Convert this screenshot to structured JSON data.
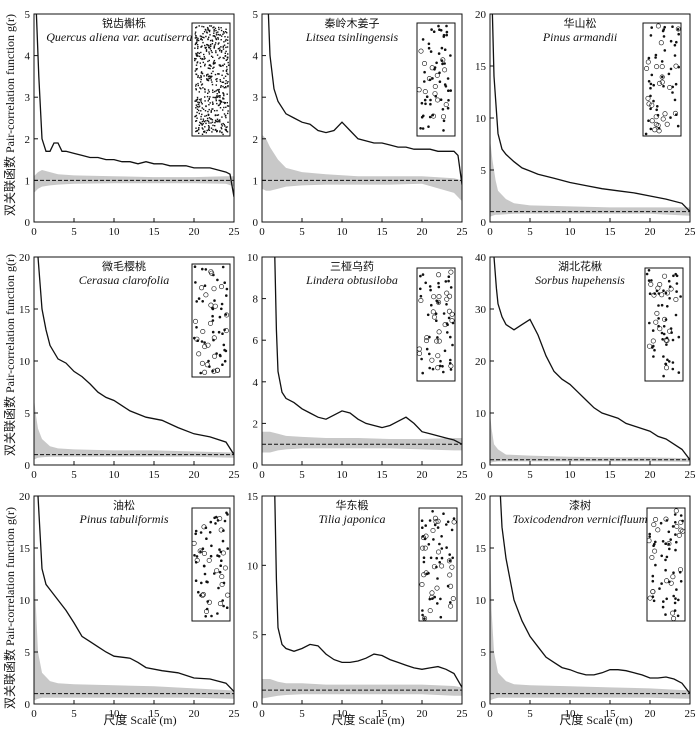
{
  "figure": {
    "ylabel": "双关联函数 Pair-correlation function g(r)",
    "xlabel": "尺度 Scale (m)"
  },
  "colors": {
    "line": "#111111",
    "envelope": "#c8c8c8",
    "map_point": "#111111"
  },
  "chart_data": [
    {
      "type": "line",
      "title_cn": "锐齿槲栎",
      "title_latin": "Quercus aliena var. acutiserrata",
      "xlim": [
        0,
        25
      ],
      "ylim": [
        0,
        5
      ],
      "xticks": [
        0,
        5,
        10,
        15,
        20,
        25
      ],
      "yticks": [
        0,
        1,
        2,
        3,
        4,
        5
      ],
      "x": [
        0.3,
        0.6,
        1.0,
        1.5,
        2.0,
        2.5,
        3.0,
        3.5,
        4.0,
        5.0,
        6.0,
        7.0,
        8.0,
        9.0,
        10.0,
        11.0,
        12.0,
        13.0,
        14.0,
        15.0,
        16.0,
        17.0,
        18.0,
        19.0,
        20.0,
        21.0,
        22.0,
        23.0,
        24.0,
        24.5,
        25.0
      ],
      "g": [
        5.0,
        3.5,
        2.0,
        1.7,
        1.7,
        1.9,
        1.9,
        1.7,
        1.7,
        1.65,
        1.6,
        1.55,
        1.55,
        1.5,
        1.5,
        1.45,
        1.45,
        1.4,
        1.45,
        1.4,
        1.4,
        1.35,
        1.35,
        1.35,
        1.3,
        1.3,
        1.3,
        1.25,
        1.2,
        1.15,
        0.6
      ],
      "env_x": [
        0.0,
        0.5,
        1.0,
        2.0,
        3.0,
        5.0,
        10.0,
        15.0,
        20.0,
        24.0,
        25.0
      ],
      "env_upper": [
        1.1,
        1.2,
        1.25,
        1.2,
        1.15,
        1.12,
        1.1,
        1.08,
        1.08,
        1.1,
        1.1
      ],
      "env_lower": [
        0.7,
        0.8,
        0.85,
        0.88,
        0.9,
        0.92,
        0.93,
        0.93,
        0.93,
        0.92,
        0.85
      ],
      "reference": 1.0
    },
    {
      "type": "line",
      "title_cn": "秦岭木姜子",
      "title_latin": "Litsea tsinlingensis",
      "xlim": [
        0,
        25
      ],
      "ylim": [
        0,
        5
      ],
      "xticks": [
        0,
        5,
        10,
        15,
        20,
        25
      ],
      "yticks": [
        0,
        1,
        2,
        3,
        4,
        5
      ],
      "x": [
        0.8,
        1.0,
        1.5,
        2.0,
        3.0,
        4.0,
        5.0,
        6.0,
        7.0,
        8.0,
        9.0,
        10.0,
        11.0,
        12.0,
        13.0,
        14.0,
        15.0,
        16.0,
        17.0,
        18.0,
        19.0,
        20.0,
        21.0,
        22.0,
        23.0,
        24.0,
        24.5,
        25.0
      ],
      "g": [
        5.0,
        4.0,
        3.2,
        2.9,
        2.6,
        2.5,
        2.4,
        2.35,
        2.2,
        2.15,
        2.2,
        2.4,
        2.2,
        2.0,
        1.95,
        1.9,
        1.9,
        1.85,
        1.8,
        1.8,
        1.75,
        1.75,
        1.75,
        1.7,
        1.7,
        1.7,
        1.6,
        0.9
      ],
      "env_x": [
        0.0,
        0.5,
        1.0,
        2.0,
        3.0,
        5.0,
        8.0,
        12.0,
        16.0,
        20.0,
        24.0,
        25.0
      ],
      "env_upper": [
        2.1,
        2.0,
        1.8,
        1.5,
        1.3,
        1.2,
        1.15,
        1.1,
        1.1,
        1.1,
        1.05,
        1.0
      ],
      "env_lower": [
        0.8,
        0.75,
        0.75,
        0.8,
        0.85,
        0.88,
        0.9,
        0.9,
        0.9,
        0.92,
        0.7,
        0.5
      ],
      "reference": 1.0
    },
    {
      "type": "line",
      "title_cn": "华山松",
      "title_latin": "Pinus armandii",
      "xlim": [
        0,
        25
      ],
      "ylim": [
        0,
        20
      ],
      "xticks": [
        0,
        5,
        10,
        15,
        20,
        25
      ],
      "yticks": [
        0,
        5,
        10,
        15,
        20
      ],
      "x": [
        0.3,
        0.5,
        1.0,
        1.5,
        2.0,
        3.0,
        4.0,
        5.0,
        6.0,
        7.0,
        8.0,
        9.0,
        10.0,
        12.0,
        14.0,
        16.0,
        18.0,
        20.0,
        22.0,
        24.0,
        25.0
      ],
      "g": [
        20.0,
        14.0,
        8.5,
        7.0,
        6.5,
        5.8,
        5.2,
        4.9,
        4.6,
        4.4,
        4.2,
        4.0,
        3.8,
        3.5,
        3.2,
        3.0,
        2.8,
        2.5,
        2.2,
        1.8,
        1.0
      ],
      "env_x": [
        0.0,
        0.3,
        0.7,
        1.0,
        2.0,
        3.0,
        5.0,
        10.0,
        15.0,
        20.0,
        25.0
      ],
      "env_upper": [
        8.0,
        6.0,
        4.0,
        3.0,
        2.2,
        1.8,
        1.6,
        1.5,
        1.4,
        1.4,
        1.4
      ],
      "env_lower": [
        0.5,
        0.6,
        0.7,
        0.7,
        0.75,
        0.8,
        0.8,
        0.8,
        0.8,
        0.8,
        0.6
      ],
      "reference": 1.0
    },
    {
      "type": "line",
      "title_cn": "微毛樱桃",
      "title_latin": "Cerasua clarofolia",
      "xlim": [
        0,
        25
      ],
      "ylim": [
        0,
        20
      ],
      "xticks": [
        0,
        5,
        10,
        15,
        20,
        25
      ],
      "yticks": [
        0,
        5,
        10,
        15,
        20
      ],
      "x": [
        0.5,
        1.0,
        1.5,
        2.0,
        3.0,
        4.0,
        5.0,
        6.0,
        7.0,
        8.0,
        9.0,
        10.0,
        11.0,
        12.0,
        14.0,
        16.0,
        18.0,
        20.0,
        22.0,
        24.0,
        25.0
      ],
      "g": [
        20.0,
        15.0,
        13.0,
        11.5,
        10.2,
        9.8,
        9.0,
        8.5,
        7.8,
        7.0,
        6.5,
        6.2,
        5.7,
        5.2,
        4.6,
        4.3,
        3.6,
        3.0,
        2.7,
        2.2,
        1.0
      ],
      "env_x": [
        0.0,
        0.2,
        0.5,
        1.0,
        2.0,
        3.0,
        5.0,
        10.0,
        15.0,
        20.0,
        25.0
      ],
      "env_upper": [
        6.5,
        5.0,
        3.5,
        2.5,
        1.8,
        1.6,
        1.5,
        1.4,
        1.4,
        1.3,
        1.2
      ],
      "env_lower": [
        0.5,
        0.6,
        0.7,
        0.75,
        0.8,
        0.8,
        0.8,
        0.8,
        0.8,
        0.8,
        0.7
      ],
      "reference": 1.0
    },
    {
      "type": "line",
      "title_cn": "三桠乌药",
      "title_latin": "Lindera obtusiloba",
      "xlim": [
        0,
        25
      ],
      "ylim": [
        0,
        10
      ],
      "xticks": [
        0,
        5,
        10,
        15,
        20,
        25
      ],
      "yticks": [
        0,
        2,
        4,
        6,
        8,
        10
      ],
      "x": [
        1.6,
        1.8,
        2.0,
        2.5,
        3.0,
        4.0,
        5.0,
        6.0,
        7.0,
        8.0,
        9.0,
        10.0,
        11.0,
        12.0,
        13.0,
        14.0,
        15.0,
        16.0,
        17.0,
        18.0,
        19.0,
        20.0,
        21.0,
        22.0,
        23.0,
        24.0,
        25.0
      ],
      "g": [
        10.0,
        6.5,
        4.5,
        3.5,
        3.2,
        3.0,
        2.7,
        2.5,
        2.3,
        2.2,
        2.4,
        2.6,
        2.5,
        2.2,
        2.0,
        1.9,
        1.8,
        1.9,
        2.1,
        2.3,
        2.0,
        1.6,
        1.5,
        1.4,
        1.3,
        1.2,
        1.0
      ],
      "env_x": [
        0.0,
        1.0,
        2.0,
        3.0,
        5.0,
        8.0,
        12.0,
        16.0,
        20.0,
        24.0,
        25.0
      ],
      "env_upper": [
        1.6,
        1.6,
        1.5,
        1.4,
        1.35,
        1.3,
        1.3,
        1.25,
        1.25,
        1.3,
        1.3
      ],
      "env_lower": [
        0.6,
        0.6,
        0.7,
        0.75,
        0.8,
        0.8,
        0.8,
        0.8,
        0.75,
        0.7,
        0.7
      ],
      "reference": 1.0
    },
    {
      "type": "line",
      "title_cn": "湖北花楸",
      "title_latin": "Sorbus hupehensis",
      "xlim": [
        0,
        25
      ],
      "ylim": [
        0,
        40
      ],
      "xticks": [
        0,
        5,
        10,
        15,
        20,
        25
      ],
      "yticks": [
        0,
        10,
        20,
        30,
        40
      ],
      "x": [
        0.5,
        0.8,
        1.0,
        1.5,
        2.0,
        3.0,
        4.0,
        5.0,
        6.0,
        7.0,
        8.0,
        9.0,
        10.0,
        11.0,
        12.0,
        13.0,
        14.0,
        15.0,
        16.0,
        17.0,
        18.0,
        19.0,
        20.0,
        21.0,
        22.0,
        23.0,
        24.0,
        25.0
      ],
      "g": [
        40.0,
        34.0,
        31.0,
        28.5,
        27.0,
        26.0,
        27.0,
        28.0,
        25.0,
        21.0,
        18.0,
        16.5,
        15.5,
        14.0,
        12.5,
        11.0,
        10.0,
        9.5,
        9.0,
        8.0,
        7.5,
        7.0,
        6.5,
        5.5,
        5.0,
        4.0,
        3.0,
        1.0
      ],
      "env_x": [
        0.0,
        0.2,
        0.5,
        1.0,
        2.0,
        5.0,
        10.0,
        15.0,
        20.0,
        25.0
      ],
      "env_upper": [
        10.0,
        7.0,
        4.0,
        3.0,
        2.0,
        1.8,
        1.6,
        1.5,
        1.5,
        1.3
      ],
      "env_lower": [
        0.3,
        0.5,
        0.6,
        0.7,
        0.7,
        0.7,
        0.7,
        0.7,
        0.7,
        0.6
      ],
      "reference": 1.0
    },
    {
      "type": "line",
      "title_cn": "油松",
      "title_latin": "Pinus tabuliformis",
      "xlim": [
        0,
        25
      ],
      "ylim": [
        0,
        20
      ],
      "xticks": [
        0,
        5,
        10,
        15,
        20,
        25
      ],
      "yticks": [
        0,
        5,
        10,
        15,
        20
      ],
      "x": [
        0.5,
        1.0,
        1.5,
        2.0,
        3.0,
        4.0,
        5.0,
        6.0,
        7.0,
        8.0,
        9.0,
        10.0,
        11.0,
        12.0,
        13.0,
        14.0,
        16.0,
        18.0,
        20.0,
        22.0,
        24.0,
        25.0
      ],
      "g": [
        20.0,
        13.0,
        11.5,
        11.0,
        10.0,
        9.0,
        7.8,
        6.5,
        6.0,
        5.5,
        5.0,
        4.6,
        4.5,
        4.4,
        4.0,
        3.5,
        3.2,
        3.0,
        2.5,
        2.4,
        2.0,
        1.2
      ],
      "env_x": [
        0.0,
        0.2,
        0.5,
        1.0,
        2.0,
        3.0,
        5.0,
        10.0,
        15.0,
        20.0,
        25.0
      ],
      "env_upper": [
        20.0,
        10.0,
        5.0,
        3.0,
        2.2,
        2.0,
        1.9,
        1.8,
        1.7,
        1.5,
        1.3
      ],
      "env_lower": [
        0.3,
        0.4,
        0.5,
        0.6,
        0.6,
        0.6,
        0.6,
        0.6,
        0.6,
        0.6,
        0.5
      ],
      "reference": 1.0
    },
    {
      "type": "line",
      "title_cn": "华东椴",
      "title_latin": "Tilia japonica",
      "xlim": [
        0,
        25
      ],
      "ylim": [
        0,
        15
      ],
      "xticks": [
        0,
        5,
        10,
        15,
        20,
        25
      ],
      "yticks": [
        0,
        5,
        10,
        15
      ],
      "x": [
        1.6,
        1.8,
        2.0,
        2.5,
        3.0,
        4.0,
        5.0,
        6.0,
        7.0,
        8.0,
        9.0,
        10.0,
        11.0,
        12.0,
        13.0,
        14.0,
        15.0,
        16.0,
        17.0,
        18.0,
        19.0,
        20.0,
        21.0,
        22.0,
        23.0,
        24.0,
        25.0
      ],
      "g": [
        15.0,
        9.0,
        5.5,
        4.3,
        4.0,
        3.8,
        4.0,
        4.3,
        4.2,
        3.6,
        3.2,
        3.0,
        3.0,
        3.1,
        3.3,
        3.6,
        3.5,
        3.2,
        3.0,
        2.8,
        2.6,
        2.5,
        2.6,
        2.7,
        2.5,
        2.2,
        1.2
      ],
      "env_x": [
        0.0,
        1.0,
        2.0,
        3.0,
        5.0,
        8.0,
        12.0,
        16.0,
        20.0,
        24.0,
        25.0
      ],
      "env_upper": [
        1.8,
        1.8,
        1.6,
        1.5,
        1.5,
        1.4,
        1.4,
        1.4,
        1.4,
        1.3,
        1.2
      ],
      "env_lower": [
        0.4,
        0.5,
        0.6,
        0.65,
        0.7,
        0.7,
        0.7,
        0.7,
        0.7,
        0.6,
        0.6
      ],
      "reference": 1.0
    },
    {
      "type": "line",
      "title_cn": "漆树",
      "title_latin": "Toxicodendron vernicifluum",
      "xlim": [
        0,
        25
      ],
      "ylim": [
        0,
        20
      ],
      "xticks": [
        0,
        5,
        10,
        15,
        20,
        25
      ],
      "yticks": [
        0,
        5,
        10,
        15,
        20
      ],
      "x": [
        1.3,
        1.5,
        2.0,
        2.5,
        3.0,
        4.0,
        5.0,
        6.0,
        7.0,
        8.0,
        9.0,
        10.0,
        11.0,
        12.0,
        13.0,
        14.0,
        15.0,
        16.0,
        17.0,
        18.0,
        19.0,
        20.0,
        21.0,
        22.0,
        23.0,
        24.0,
        25.0
      ],
      "g": [
        20.0,
        17.0,
        14.0,
        12.0,
        10.0,
        8.0,
        6.5,
        5.5,
        4.5,
        4.0,
        3.5,
        3.3,
        3.0,
        2.8,
        2.8,
        3.0,
        3.3,
        3.3,
        3.2,
        3.0,
        2.8,
        2.5,
        2.5,
        2.6,
        2.4,
        2.0,
        1.0
      ],
      "env_x": [
        0.0,
        0.2,
        0.5,
        1.0,
        2.0,
        3.0,
        5.0,
        10.0,
        15.0,
        20.0,
        25.0
      ],
      "env_upper": [
        17.0,
        9.0,
        5.0,
        3.0,
        2.2,
        1.9,
        1.8,
        1.7,
        1.6,
        1.5,
        1.3
      ],
      "env_lower": [
        0.3,
        0.4,
        0.5,
        0.6,
        0.6,
        0.6,
        0.6,
        0.6,
        0.6,
        0.6,
        0.5
      ],
      "reference": 1.0
    }
  ]
}
